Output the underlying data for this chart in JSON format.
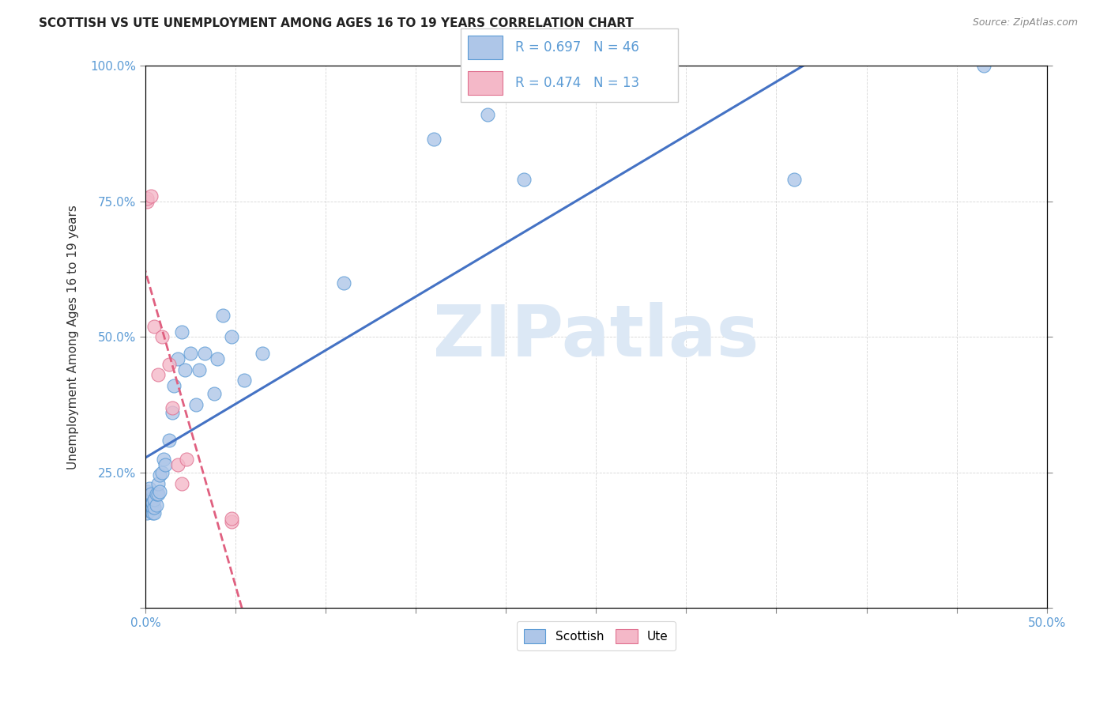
{
  "title": "SCOTTISH VS UTE UNEMPLOYMENT AMONG AGES 16 TO 19 YEARS CORRELATION CHART",
  "source": "Source: ZipAtlas.com",
  "ylabel_label": "Unemployment Among Ages 16 to 19 years",
  "legend_blue_label": "Scottish",
  "legend_pink_label": "Ute",
  "blue_R": 0.697,
  "blue_N": 46,
  "pink_R": 0.474,
  "pink_N": 13,
  "blue_color": "#aec6e8",
  "blue_edge_color": "#5b9bd5",
  "pink_color": "#f4b8c8",
  "pink_edge_color": "#e07090",
  "blue_line_color": "#4472c4",
  "pink_line_color": "#e06080",
  "watermark": "ZIPatlas",
  "watermark_color": "#dce8f5",
  "background_color": "#ffffff",
  "tick_color": "#5b9bd5",
  "xlim": [
    0,
    0.5
  ],
  "ylim": [
    0,
    1.0
  ],
  "scottish_x": [
    0.001,
    0.001,
    0.001,
    0.002,
    0.002,
    0.002,
    0.003,
    0.003,
    0.003,
    0.004,
    0.004,
    0.004,
    0.005,
    0.005,
    0.005,
    0.006,
    0.006,
    0.007,
    0.007,
    0.008,
    0.008,
    0.009,
    0.01,
    0.011,
    0.013,
    0.015,
    0.016,
    0.018,
    0.02,
    0.022,
    0.025,
    0.028,
    0.03,
    0.033,
    0.038,
    0.04,
    0.043,
    0.048,
    0.055,
    0.065,
    0.11,
    0.16,
    0.19,
    0.21,
    0.36,
    0.465
  ],
  "scottish_y": [
    0.175,
    0.195,
    0.215,
    0.18,
    0.2,
    0.22,
    0.185,
    0.19,
    0.21,
    0.175,
    0.185,
    0.195,
    0.175,
    0.185,
    0.2,
    0.19,
    0.21,
    0.21,
    0.23,
    0.215,
    0.245,
    0.25,
    0.275,
    0.265,
    0.31,
    0.36,
    0.41,
    0.46,
    0.51,
    0.44,
    0.47,
    0.375,
    0.44,
    0.47,
    0.395,
    0.46,
    0.54,
    0.5,
    0.42,
    0.47,
    0.6,
    0.865,
    0.91,
    0.79,
    0.79,
    1.0
  ],
  "ute_x": [
    0.001,
    0.001,
    0.003,
    0.005,
    0.007,
    0.009,
    0.013,
    0.015,
    0.018,
    0.02,
    0.023,
    0.048,
    0.048
  ],
  "ute_y": [
    0.75,
    0.755,
    0.76,
    0.52,
    0.43,
    0.5,
    0.45,
    0.37,
    0.265,
    0.23,
    0.275,
    0.16,
    0.165
  ]
}
